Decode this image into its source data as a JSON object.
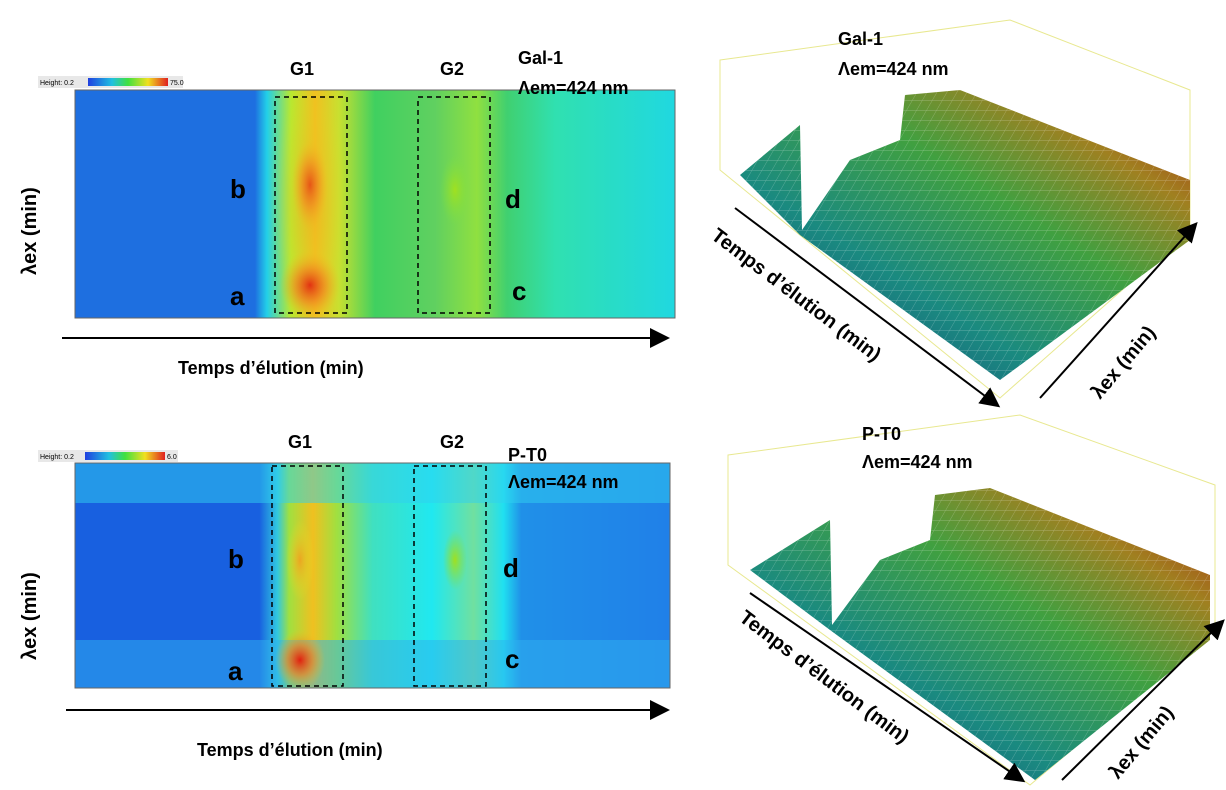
{
  "heatmaps": [
    {
      "title": "Gal-1",
      "subtitle": "Λem=424 nm",
      "x_label": "Temps d’élution (min)",
      "y_label": "λex (min)",
      "scale": {
        "min_label": "Height: 0.2",
        "max_label": "75.0"
      },
      "regions": [
        "G1",
        "G2"
      ],
      "points": [
        "a",
        "b",
        "c",
        "d"
      ]
    },
    {
      "title": "P-T0",
      "subtitle": "Λem=424 nm",
      "x_label": "Temps d’élution (min)",
      "y_label": "λex (min)",
      "scale": {
        "min_label": "Height: 0.2",
        "max_label": "6.0"
      },
      "regions": [
        "G1",
        "G2"
      ],
      "points": [
        "a",
        "b",
        "c",
        "d"
      ]
    }
  ],
  "surfaces": [
    {
      "title": "Gal-1",
      "subtitle": "Λem=424 nm",
      "x_label": "Temps d’élution (min)",
      "y_label": "λex (min)"
    },
    {
      "title": "P-T0",
      "subtitle": "Λem=424 nm",
      "x_label": "Temps d’élution (min)",
      "y_label": "λex (min)"
    }
  ]
}
